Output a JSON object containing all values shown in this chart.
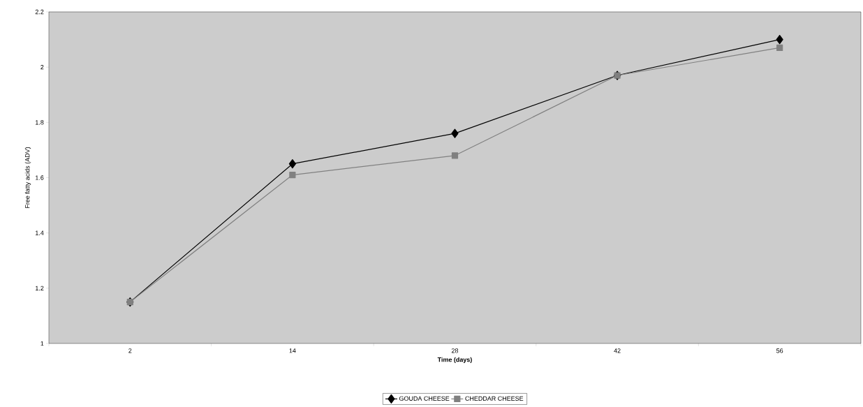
{
  "chart_data": {
    "type": "line",
    "xlabel": "Time (days)",
    "ylabel": "Free fatty acids (ADV)",
    "categories": [
      "2",
      "14",
      "28",
      "42",
      "56"
    ],
    "series": [
      {
        "name": "GOUDA CHEESE",
        "color": "#000000",
        "marker": "diamond",
        "values": [
          1.15,
          1.65,
          1.76,
          1.97,
          2.1
        ]
      },
      {
        "name": "CHEDDAR CHEESE",
        "color": "#808080",
        "marker": "square",
        "values": [
          1.15,
          1.61,
          1.68,
          1.97,
          2.07
        ]
      }
    ],
    "ylim": [
      1,
      2.2
    ],
    "yticks": [
      1,
      1.2,
      1.4,
      1.6,
      1.8,
      2,
      2.2
    ],
    "legend": "bottom",
    "grid": false,
    "line_style": "solid"
  }
}
